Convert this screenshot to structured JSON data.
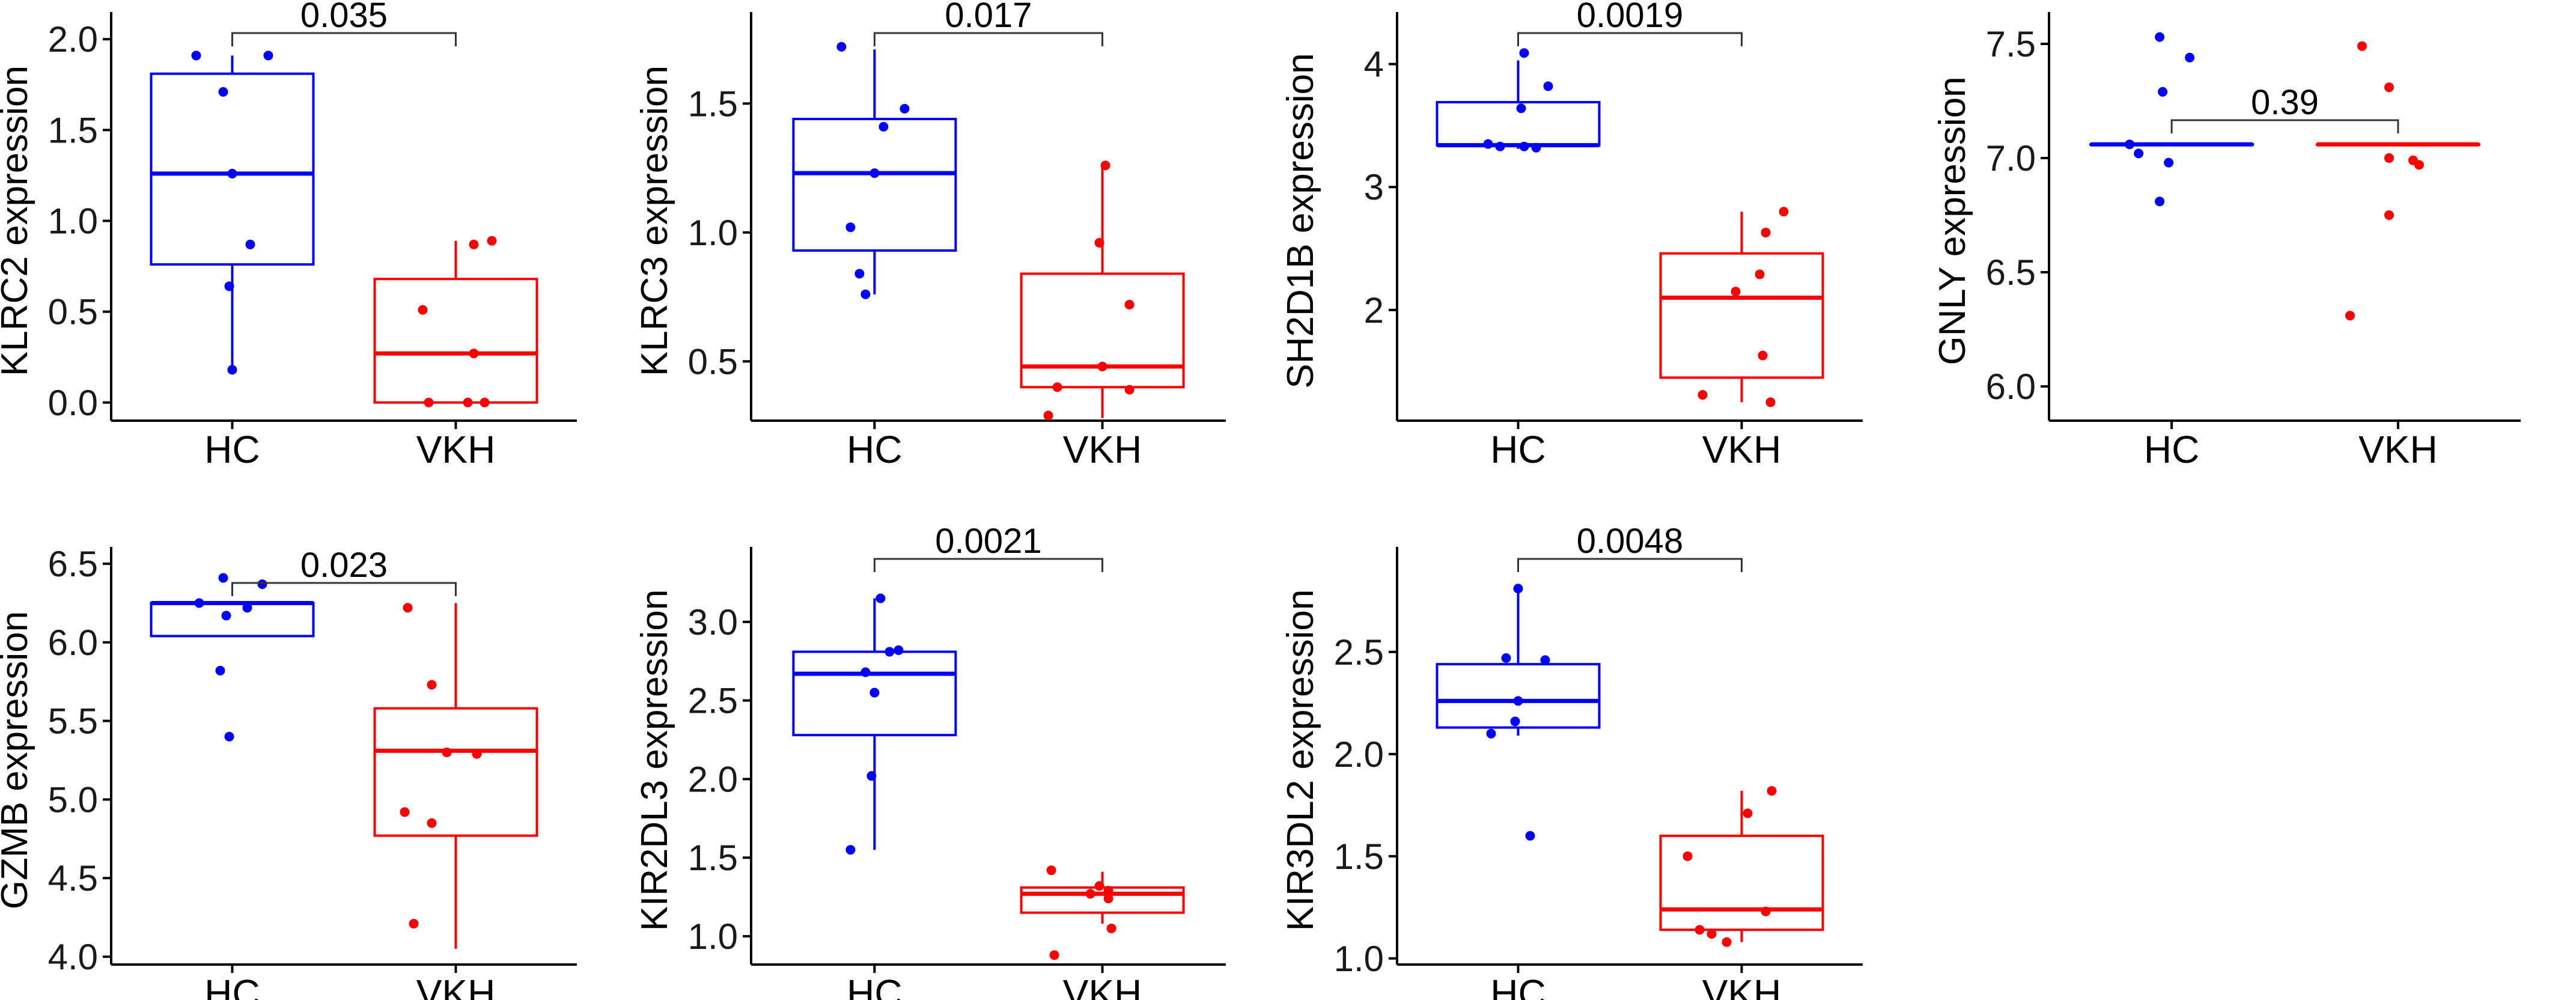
{
  "colors": {
    "HC": "#0000ff",
    "VKH": "#ff0000"
  },
  "chart_data": [
    {
      "type": "box",
      "ylabel": "KLRC2 expression",
      "categories": [
        "HC",
        "VKH"
      ],
      "ylim": [
        -0.1,
        2.1
      ],
      "yticks": [
        "0.0",
        "0.5",
        "1.0",
        "1.5",
        "2.0"
      ],
      "p_value": "0.035",
      "series": [
        {
          "name": "HC",
          "q1": 0.76,
          "median": 1.26,
          "q3": 1.81,
          "whisker_low": 0.18,
          "whisker_high": 1.91,
          "points": [
            1.91,
            1.91,
            1.71,
            1.26,
            0.87,
            0.64,
            0.18
          ]
        },
        {
          "name": "VKH",
          "q1": 0.0,
          "median": 0.27,
          "q3": 0.68,
          "whisker_low": 0.0,
          "whisker_high": 0.89,
          "points": [
            0.89,
            0.87,
            0.51,
            0.27,
            0.0,
            0.0,
            0.0
          ]
        }
      ]
    },
    {
      "type": "box",
      "ylabel": "KLRC3 expression",
      "categories": [
        "HC",
        "VKH"
      ],
      "ylim": [
        0.27,
        1.82
      ],
      "yticks": [
        "0.5",
        "1.0",
        "1.5"
      ],
      "p_value": "0.017",
      "series": [
        {
          "name": "HC",
          "q1": 0.93,
          "median": 1.23,
          "q3": 1.44,
          "whisker_low": 0.76,
          "whisker_high": 1.71,
          "points": [
            1.72,
            1.48,
            1.41,
            1.23,
            1.02,
            0.84,
            0.76
          ]
        },
        {
          "name": "VKH",
          "q1": 0.4,
          "median": 0.48,
          "q3": 0.84,
          "whisker_low": 0.28,
          "whisker_high": 1.26,
          "points": [
            1.26,
            0.96,
            0.72,
            0.48,
            0.4,
            0.39,
            0.29
          ]
        }
      ]
    },
    {
      "type": "box",
      "ylabel": "SH2D1B expression",
      "categories": [
        "HC",
        "VKH"
      ],
      "ylim": [
        1.1,
        4.35
      ],
      "yticks": [
        "2",
        "3",
        "4"
      ],
      "p_value": "0.0019",
      "series": [
        {
          "name": "HC",
          "q1": 3.34,
          "median": 3.34,
          "q3": 3.69,
          "whisker_low": 3.31,
          "whisker_high": 4.03,
          "points": [
            4.09,
            3.82,
            3.64,
            3.35,
            3.33,
            3.33,
            3.32
          ]
        },
        {
          "name": "VKH",
          "q1": 1.45,
          "median": 2.1,
          "q3": 2.46,
          "whisker_low": 1.25,
          "whisker_high": 2.8,
          "points": [
            2.8,
            2.63,
            2.29,
            2.15,
            1.63,
            1.31,
            1.25
          ]
        }
      ]
    },
    {
      "type": "box",
      "ylabel": "GNLY expression",
      "categories": [
        "HC",
        "VKH"
      ],
      "ylim": [
        5.85,
        7.6
      ],
      "yticks": [
        "6.0",
        "6.5",
        "7.0",
        "7.5"
      ],
      "p_value": "0.39",
      "series": [
        {
          "name": "HC",
          "q1": 7.06,
          "median": 7.06,
          "q3": 7.06,
          "whisker_low": 7.06,
          "whisker_high": 7.06,
          "points": [
            7.53,
            7.44,
            7.29,
            7.06,
            7.02,
            6.98,
            6.81
          ]
        },
        {
          "name": "VKH",
          "q1": 7.06,
          "median": 7.06,
          "q3": 7.06,
          "whisker_low": 7.06,
          "whisker_high": 7.06,
          "points": [
            7.49,
            7.31,
            7.0,
            6.99,
            6.97,
            6.75,
            6.31
          ]
        }
      ]
    },
    {
      "type": "box",
      "ylabel": "GZMB expression",
      "categories": [
        "HC",
        "VKH"
      ],
      "ylim": [
        3.95,
        6.55
      ],
      "yticks": [
        "4.0",
        "4.5",
        "5.0",
        "5.5",
        "6.0",
        "6.5"
      ],
      "p_value": "0.023",
      "series": [
        {
          "name": "HC",
          "q1": 6.04,
          "median": 6.25,
          "q3": 6.25,
          "whisker_low": 6.04,
          "whisker_high": 6.25,
          "points": [
            6.41,
            6.37,
            6.25,
            6.22,
            6.17,
            5.82,
            5.4
          ]
        },
        {
          "name": "VKH",
          "q1": 4.77,
          "median": 5.31,
          "q3": 5.58,
          "whisker_low": 4.05,
          "whisker_high": 6.25,
          "points": [
            6.22,
            5.73,
            5.3,
            5.29,
            4.92,
            4.85,
            4.21
          ]
        }
      ]
    },
    {
      "type": "box",
      "ylabel": "KIR2DL3 expression",
      "categories": [
        "HC",
        "VKH"
      ],
      "ylim": [
        0.82,
        3.42
      ],
      "yticks": [
        "1.0",
        "1.5",
        "2.0",
        "2.5",
        "3.0"
      ],
      "p_value": "0.0021",
      "series": [
        {
          "name": "HC",
          "q1": 2.28,
          "median": 2.67,
          "q3": 2.81,
          "whisker_low": 1.55,
          "whisker_high": 3.15,
          "points": [
            3.15,
            2.82,
            2.81,
            2.68,
            2.55,
            2.02,
            1.55
          ]
        },
        {
          "name": "VKH",
          "q1": 1.15,
          "median": 1.27,
          "q3": 1.31,
          "whisker_low": 1.08,
          "whisker_high": 1.41,
          "points": [
            1.42,
            1.32,
            1.29,
            1.27,
            1.24,
            1.05,
            0.88
          ]
        }
      ]
    },
    {
      "type": "box",
      "ylabel": "KIR3DL2 expression",
      "categories": [
        "HC",
        "VKH"
      ],
      "ylim": [
        0.97,
        2.97
      ],
      "yticks": [
        "1.0",
        "1.5",
        "2.0",
        "2.5"
      ],
      "p_value": "0.0048",
      "series": [
        {
          "name": "HC",
          "q1": 2.13,
          "median": 2.26,
          "q3": 2.44,
          "whisker_low": 2.09,
          "whisker_high": 2.81,
          "points": [
            2.81,
            2.47,
            2.46,
            2.26,
            2.16,
            2.1,
            1.6
          ]
        },
        {
          "name": "VKH",
          "q1": 1.14,
          "median": 1.24,
          "q3": 1.6,
          "whisker_low": 1.08,
          "whisker_high": 1.82,
          "points": [
            1.82,
            1.71,
            1.5,
            1.23,
            1.14,
            1.12,
            1.08
          ]
        }
      ]
    }
  ]
}
